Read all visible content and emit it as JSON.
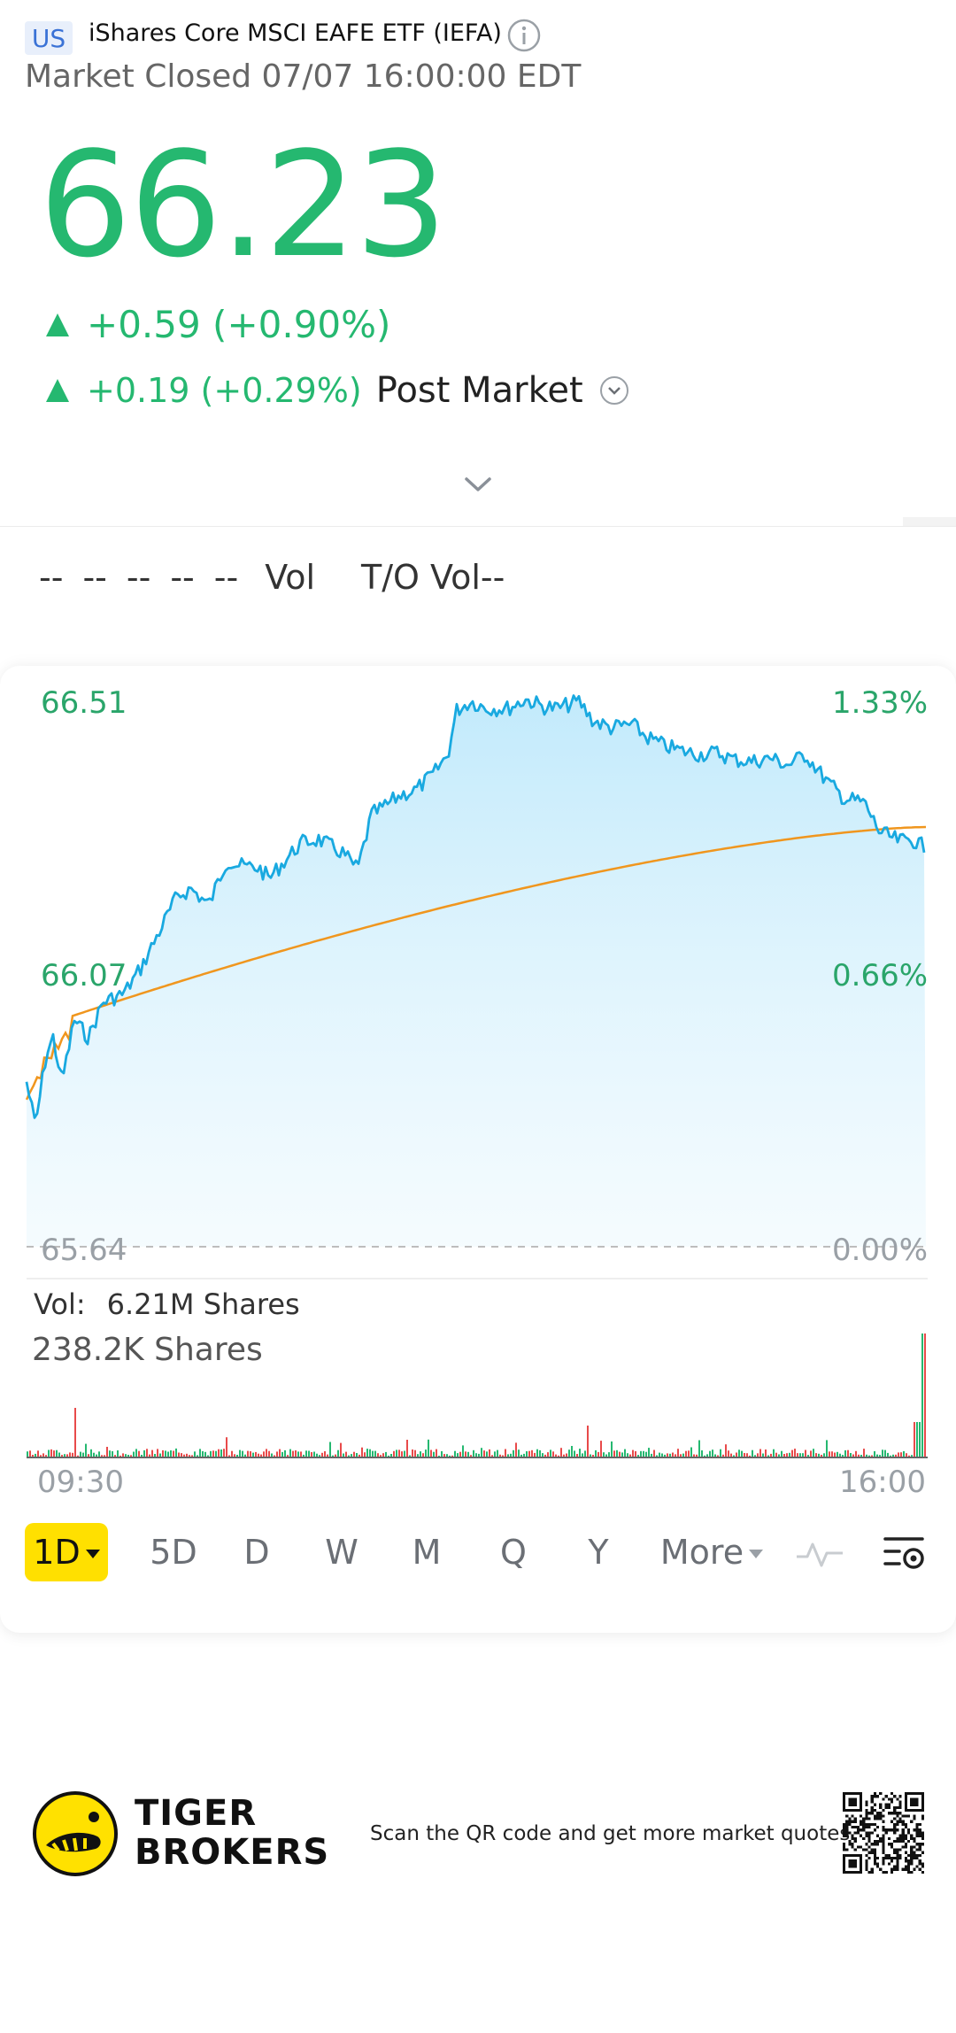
{
  "header": {
    "market_badge": "US",
    "title": "iShares Core MSCI EAFE ETF (IEFA)",
    "status": "Market Closed 07/07 16:00:00 EDT"
  },
  "quote": {
    "price": "66.23",
    "change": "+0.59 (+0.90%)",
    "post_change": "+0.19 (+0.29%)",
    "post_label": "Post Market"
  },
  "stats": {
    "placeholders": [
      "--",
      "--",
      "--",
      "--",
      "--"
    ],
    "vol_label": "Vol",
    "to_vol_label": "T/O Vol--"
  },
  "chart_data": {
    "type": "line",
    "y_left_ticks": [
      "66.51",
      "66.07",
      "65.64"
    ],
    "y_right_ticks": [
      "1.33%",
      "0.66%",
      "0.00%"
    ],
    "ylim": [
      65.64,
      66.51
    ],
    "x_ticks": [
      "09:30",
      "16:00"
    ],
    "series": [],
    "colors": {
      "price": "#19a9e0",
      "avg": "#f0961e",
      "up": "#25b870",
      "down": "#e84a4a"
    }
  },
  "volume": {
    "label": "Vol:",
    "value": "6.21M Shares",
    "last": "238.2K Shares"
  },
  "period_tabs": [
    "1D",
    "5D",
    "D",
    "W",
    "M",
    "Q",
    "Y",
    "More"
  ],
  "footer": {
    "brand_line1": "TIGER",
    "brand_line2": "BROKERS",
    "scan_text": "Scan the QR code and get more market quotes"
  }
}
